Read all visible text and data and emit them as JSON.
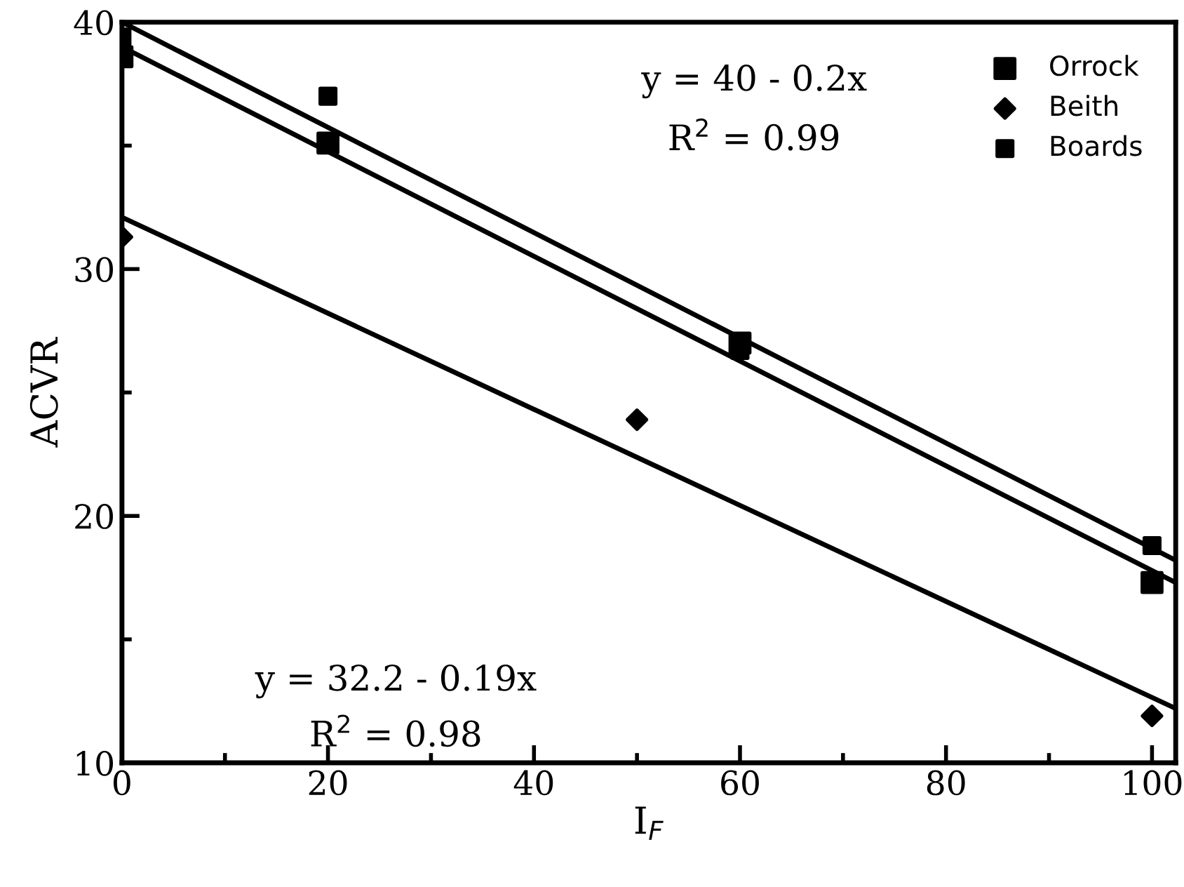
{
  "chart_data": {
    "type": "scatter",
    "xlabel": "I$_{F}$",
    "ylabel": "ACVR",
    "xlim": [
      0,
      102.3
    ],
    "ylim": [
      10,
      40
    ],
    "xticks": [
      0,
      {
        "value": 10,
        "label": null
      },
      20,
      {
        "value": 30,
        "label": null
      },
      40,
      {
        "value": 50,
        "label": null
      },
      60,
      {
        "value": 70,
        "label": null
      },
      80,
      {
        "value": 90,
        "label": null
      },
      100
    ],
    "yticks": [
      10,
      {
        "value": 15,
        "label": null
      },
      20,
      {
        "value": 25,
        "label": null
      },
      30,
      {
        "value": 35,
        "label": null
      },
      40
    ],
    "grid": false,
    "legend": "top right",
    "annotations": [
      "y = 40 - 0.2x",
      "R$^{2}$ = 0.99",
      "y = 32.2 - 0.19x",
      "R$^{2}$ = 0.98"
    ],
    "series": [
      {
        "name": "Orrock",
        "marker": "square",
        "color": "#000000",
        "x": [
          0,
          20,
          60,
          100
        ],
        "values": [
          38.6,
          35.1,
          27.0,
          17.3
        ]
      },
      {
        "name": "Beith",
        "marker": "diamond",
        "color": "#000000",
        "x": [
          0,
          50,
          100
        ],
        "values": [
          31.3,
          23.9,
          11.9
        ]
      },
      {
        "name": "Boards",
        "marker": "square",
        "color": "#000000",
        "x": [
          0,
          20,
          60,
          100
        ],
        "values": [
          39.4,
          37.0,
          26.7,
          18.8
        ]
      },
      {
        "type": "line",
        "line_style": "solid",
        "color": "#000000",
        "x": [
          0,
          102.3
        ],
        "values": [
          40.0,
          18.2
        ]
      },
      {
        "type": "line",
        "line_style": "solid",
        "color": "#000000",
        "x": [
          0,
          102.3
        ],
        "values": [
          39.0,
          17.3
        ]
      },
      {
        "type": "line",
        "line_style": "solid",
        "color": "#000000",
        "x": [
          0,
          102.3
        ],
        "values": [
          32.1,
          12.2
        ]
      }
    ]
  }
}
